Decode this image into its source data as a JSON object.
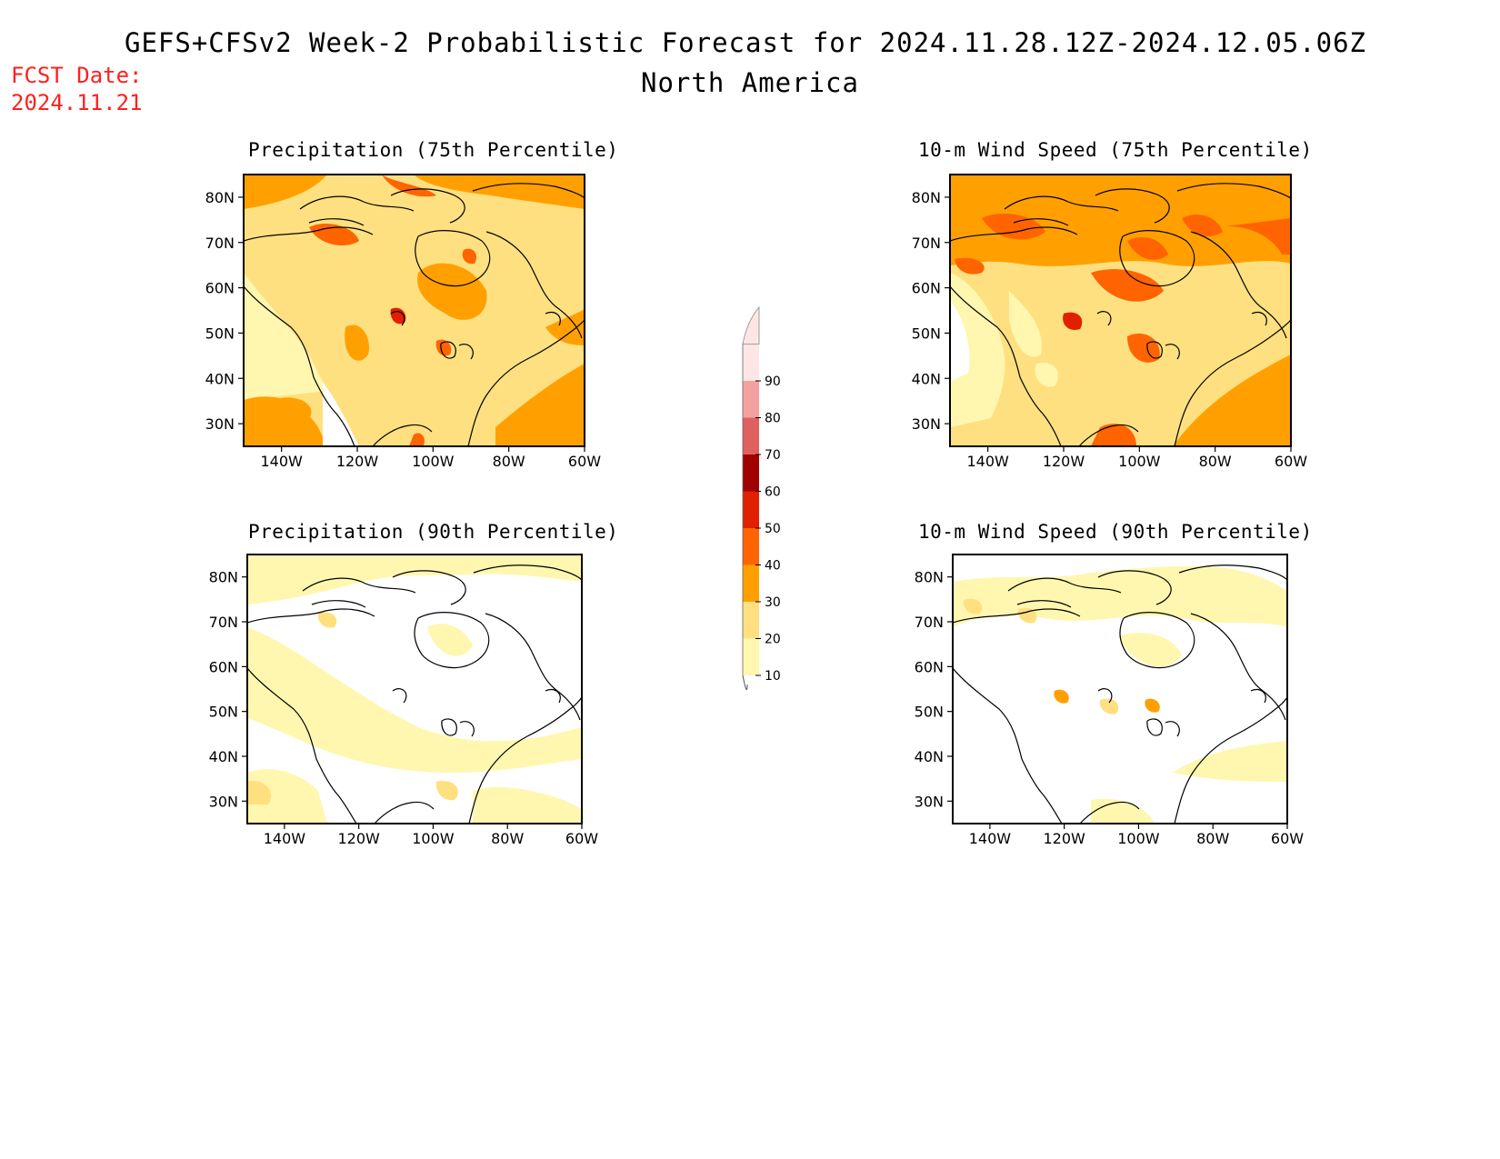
{
  "title": "GEFS+CFSv2 Week-2 Probabilistic Forecast for 2024.11.28.12Z-2024.12.05.06Z",
  "subtitle": "North America",
  "fcst_label": "FCST Date:",
  "fcst_date": "2024.11.21",
  "panels": [
    {
      "title": "Precipitation (75th Percentile)"
    },
    {
      "title": "10-m Wind Speed (75th Percentile)"
    },
    {
      "title": "Precipitation (90th Percentile)"
    },
    {
      "title": "10-m Wind Speed (90th Percentile)"
    }
  ],
  "lat_ticks": [
    "80N",
    "70N",
    "60N",
    "50N",
    "40N",
    "30N"
  ],
  "lon_ticks": [
    "140W",
    "120W",
    "100W",
    "80W",
    "60W"
  ],
  "colorbar": {
    "levels": [
      "10",
      "20",
      "30",
      "40",
      "50",
      "60",
      "70",
      "80",
      "90"
    ],
    "colors": [
      "#fff7b0",
      "#ffe080",
      "#ffa000",
      "#ff6400",
      "#e02000",
      "#a00000",
      "#e06060",
      "#f4a0a0",
      "#ffe6e6"
    ]
  }
}
